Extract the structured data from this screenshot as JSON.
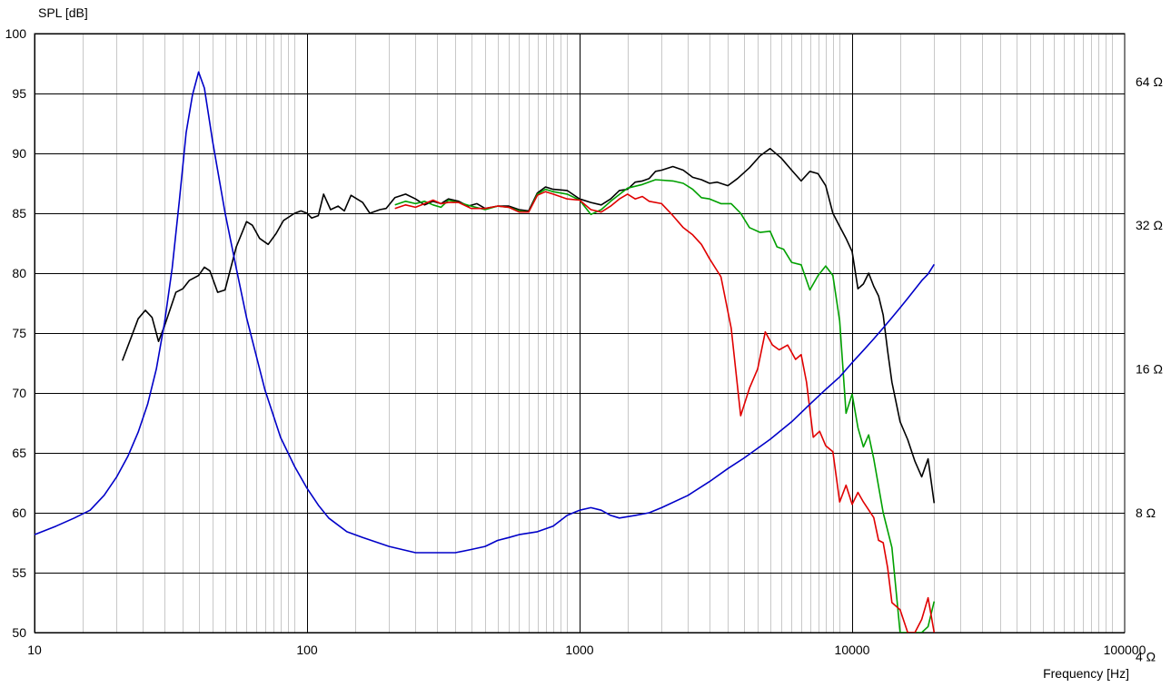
{
  "chart_data": {
    "type": "line",
    "ylabel": "SPL [dB]",
    "xlabel": "Frequency [Hz]",
    "x_scale": "log",
    "xlim": [
      10,
      100000
    ],
    "ylim": [
      50,
      100
    ],
    "x_ticks": [
      "10",
      "100",
      "1000",
      "10000",
      "100000"
    ],
    "y_ticks": [
      "50",
      "55",
      "60",
      "65",
      "70",
      "75",
      "80",
      "85",
      "90",
      "95",
      "100"
    ],
    "y2_scale": "log",
    "y2_ticks": [
      {
        "label": "4 Ω",
        "ohm": 4
      },
      {
        "label": "8 Ω",
        "ohm": 8
      },
      {
        "label": "16 Ω",
        "ohm": 16
      },
      {
        "label": "32 Ω",
        "ohm": 32
      },
      {
        "label": "64 Ω",
        "ohm": 64
      }
    ],
    "grid": true,
    "colors": {
      "grid_major": "#000000",
      "grid_minor": "#c8c8c8"
    },
    "series": [
      {
        "color": "#000000",
        "axis": "spl",
        "points": [
          [
            21,
            72.7
          ],
          [
            22.5,
            74.5
          ],
          [
            24,
            76.2
          ],
          [
            25.5,
            76.9
          ],
          [
            27,
            76.3
          ],
          [
            28.5,
            74.3
          ],
          [
            30,
            75.6
          ],
          [
            33,
            78.4
          ],
          [
            35,
            78.7
          ],
          [
            37,
            79.4
          ],
          [
            40,
            79.8
          ],
          [
            42,
            80.5
          ],
          [
            44,
            80.2
          ],
          [
            47,
            78.4
          ],
          [
            50,
            78.6
          ],
          [
            55,
            82.2
          ],
          [
            60,
            84.3
          ],
          [
            63,
            84.0
          ],
          [
            67,
            82.9
          ],
          [
            72,
            82.4
          ],
          [
            77,
            83.3
          ],
          [
            82,
            84.4
          ],
          [
            90,
            85.0
          ],
          [
            95,
            85.2
          ],
          [
            100,
            85.0
          ],
          [
            104,
            84.6
          ],
          [
            110,
            84.8
          ],
          [
            115,
            86.6
          ],
          [
            122,
            85.3
          ],
          [
            130,
            85.6
          ],
          [
            137,
            85.2
          ],
          [
            145,
            86.5
          ],
          [
            160,
            85.9
          ],
          [
            170,
            85.0
          ],
          [
            185,
            85.3
          ],
          [
            195,
            85.4
          ],
          [
            210,
            86.3
          ],
          [
            230,
            86.6
          ],
          [
            250,
            86.2
          ],
          [
            270,
            85.7
          ],
          [
            290,
            86.0
          ],
          [
            310,
            85.8
          ],
          [
            330,
            86.2
          ],
          [
            360,
            86.0
          ],
          [
            390,
            85.6
          ],
          [
            420,
            85.8
          ],
          [
            450,
            85.4
          ],
          [
            500,
            85.6
          ],
          [
            550,
            85.6
          ],
          [
            600,
            85.3
          ],
          [
            650,
            85.2
          ],
          [
            700,
            86.7
          ],
          [
            750,
            87.2
          ],
          [
            800,
            87.0
          ],
          [
            900,
            86.9
          ],
          [
            1000,
            86.2
          ],
          [
            1100,
            85.9
          ],
          [
            1200,
            85.7
          ],
          [
            1300,
            86.2
          ],
          [
            1400,
            86.9
          ],
          [
            1500,
            87.0
          ],
          [
            1600,
            87.6
          ],
          [
            1700,
            87.7
          ],
          [
            1800,
            87.9
          ],
          [
            1900,
            88.5
          ],
          [
            2000,
            88.6
          ],
          [
            2200,
            88.9
          ],
          [
            2400,
            88.6
          ],
          [
            2600,
            88.0
          ],
          [
            2800,
            87.8
          ],
          [
            3000,
            87.5
          ],
          [
            3200,
            87.6
          ],
          [
            3500,
            87.3
          ],
          [
            3800,
            87.9
          ],
          [
            4200,
            88.8
          ],
          [
            4600,
            89.8
          ],
          [
            5000,
            90.4
          ],
          [
            5500,
            89.6
          ],
          [
            6000,
            88.6
          ],
          [
            6500,
            87.7
          ],
          [
            7000,
            88.5
          ],
          [
            7500,
            88.3
          ],
          [
            8000,
            87.3
          ],
          [
            8500,
            85.0
          ],
          [
            9000,
            83.9
          ],
          [
            9500,
            82.9
          ],
          [
            10000,
            81.8
          ],
          [
            10500,
            78.7
          ],
          [
            11000,
            79.1
          ],
          [
            11500,
            80.0
          ],
          [
            12000,
            78.9
          ],
          [
            12500,
            78.1
          ],
          [
            13000,
            76.5
          ],
          [
            13500,
            73.5
          ],
          [
            14000,
            70.9
          ],
          [
            15000,
            67.6
          ],
          [
            16000,
            66.1
          ],
          [
            17000,
            64.3
          ],
          [
            18000,
            63.0
          ],
          [
            19000,
            64.5
          ],
          [
            20000,
            60.8
          ]
        ]
      },
      {
        "color": "#00a000",
        "axis": "spl",
        "points": [
          [
            210,
            85.7
          ],
          [
            230,
            86.0
          ],
          [
            250,
            85.8
          ],
          [
            270,
            86.0
          ],
          [
            290,
            85.7
          ],
          [
            310,
            85.5
          ],
          [
            330,
            86.1
          ],
          [
            360,
            85.9
          ],
          [
            400,
            85.6
          ],
          [
            450,
            85.3
          ],
          [
            500,
            85.6
          ],
          [
            550,
            85.5
          ],
          [
            600,
            85.2
          ],
          [
            650,
            85.1
          ],
          [
            700,
            86.6
          ],
          [
            750,
            87.0
          ],
          [
            800,
            86.8
          ],
          [
            900,
            86.6
          ],
          [
            1000,
            86.1
          ],
          [
            1100,
            84.9
          ],
          [
            1200,
            85.3
          ],
          [
            1300,
            86.0
          ],
          [
            1500,
            87.1
          ],
          [
            1700,
            87.4
          ],
          [
            1900,
            87.8
          ],
          [
            2200,
            87.7
          ],
          [
            2400,
            87.5
          ],
          [
            2600,
            87.0
          ],
          [
            2800,
            86.3
          ],
          [
            3000,
            86.2
          ],
          [
            3300,
            85.8
          ],
          [
            3600,
            85.8
          ],
          [
            3900,
            85.0
          ],
          [
            4200,
            83.8
          ],
          [
            4600,
            83.4
          ],
          [
            5000,
            83.5
          ],
          [
            5300,
            82.2
          ],
          [
            5600,
            82.0
          ],
          [
            6000,
            80.9
          ],
          [
            6500,
            80.7
          ],
          [
            7000,
            78.6
          ],
          [
            7500,
            79.8
          ],
          [
            8000,
            80.6
          ],
          [
            8500,
            79.8
          ],
          [
            9000,
            76.0
          ],
          [
            9500,
            68.3
          ],
          [
            10000,
            69.9
          ],
          [
            10500,
            67.1
          ],
          [
            11000,
            65.5
          ],
          [
            11500,
            66.5
          ],
          [
            12000,
            64.5
          ],
          [
            13000,
            60.0
          ],
          [
            14000,
            57.1
          ],
          [
            15000,
            50.0
          ],
          [
            16000,
            50.0
          ],
          [
            17000,
            50.0
          ],
          [
            18000,
            50.0
          ],
          [
            19000,
            50.5
          ],
          [
            20000,
            52.6
          ]
        ]
      },
      {
        "color": "#e00000",
        "axis": "spl",
        "points": [
          [
            210,
            85.4
          ],
          [
            230,
            85.7
          ],
          [
            250,
            85.5
          ],
          [
            270,
            85.8
          ],
          [
            290,
            86.1
          ],
          [
            310,
            85.8
          ],
          [
            330,
            85.9
          ],
          [
            360,
            85.9
          ],
          [
            400,
            85.4
          ],
          [
            450,
            85.4
          ],
          [
            500,
            85.6
          ],
          [
            550,
            85.5
          ],
          [
            600,
            85.1
          ],
          [
            650,
            85.1
          ],
          [
            700,
            86.5
          ],
          [
            750,
            86.8
          ],
          [
            800,
            86.6
          ],
          [
            900,
            86.2
          ],
          [
            1000,
            86.1
          ],
          [
            1100,
            85.3
          ],
          [
            1200,
            85.1
          ],
          [
            1300,
            85.6
          ],
          [
            1400,
            86.2
          ],
          [
            1500,
            86.6
          ],
          [
            1600,
            86.2
          ],
          [
            1700,
            86.4
          ],
          [
            1800,
            86.0
          ],
          [
            2000,
            85.8
          ],
          [
            2200,
            84.8
          ],
          [
            2400,
            83.8
          ],
          [
            2600,
            83.2
          ],
          [
            2800,
            82.4
          ],
          [
            3000,
            81.2
          ],
          [
            3300,
            79.7
          ],
          [
            3600,
            75.4
          ],
          [
            3900,
            68.1
          ],
          [
            4200,
            70.4
          ],
          [
            4500,
            72.0
          ],
          [
            4800,
            75.1
          ],
          [
            5100,
            74.0
          ],
          [
            5400,
            73.6
          ],
          [
            5800,
            74.0
          ],
          [
            6200,
            72.8
          ],
          [
            6500,
            73.2
          ],
          [
            6800,
            70.9
          ],
          [
            7200,
            66.3
          ],
          [
            7600,
            66.8
          ],
          [
            8000,
            65.6
          ],
          [
            8500,
            65.1
          ],
          [
            9000,
            60.9
          ],
          [
            9500,
            62.3
          ],
          [
            10000,
            60.7
          ],
          [
            10500,
            61.7
          ],
          [
            11000,
            60.9
          ],
          [
            12000,
            59.6
          ],
          [
            12500,
            57.7
          ],
          [
            13000,
            57.5
          ],
          [
            13500,
            55.4
          ],
          [
            14000,
            52.5
          ],
          [
            15000,
            51.9
          ],
          [
            16000,
            50.0
          ],
          [
            17000,
            50.0
          ],
          [
            18000,
            51.1
          ],
          [
            19000,
            52.9
          ],
          [
            20000,
            50.0
          ]
        ]
      },
      {
        "color": "#0000c8",
        "axis": "impedance",
        "points": [
          [
            10,
            7.2
          ],
          [
            12,
            7.5
          ],
          [
            14,
            7.8
          ],
          [
            16,
            8.1
          ],
          [
            18,
            8.7
          ],
          [
            20,
            9.5
          ],
          [
            22,
            10.5
          ],
          [
            24,
            11.8
          ],
          [
            26,
            13.5
          ],
          [
            28,
            16.0
          ],
          [
            30,
            20.0
          ],
          [
            32,
            26.0
          ],
          [
            34,
            36.0
          ],
          [
            36,
            50.0
          ],
          [
            38,
            60.0
          ],
          [
            40,
            67.0
          ],
          [
            42,
            62.0
          ],
          [
            45,
            48.0
          ],
          [
            50,
            34.0
          ],
          [
            55,
            26.0
          ],
          [
            60,
            20.5
          ],
          [
            70,
            14.5
          ],
          [
            80,
            11.5
          ],
          [
            90,
            10.0
          ],
          [
            100,
            9.0
          ],
          [
            110,
            8.3
          ],
          [
            120,
            7.8
          ],
          [
            140,
            7.3
          ],
          [
            160,
            7.1
          ],
          [
            200,
            6.8
          ],
          [
            250,
            6.6
          ],
          [
            300,
            6.6
          ],
          [
            350,
            6.6
          ],
          [
            400,
            6.7
          ],
          [
            450,
            6.8
          ],
          [
            500,
            7.0
          ],
          [
            550,
            7.1
          ],
          [
            600,
            7.2
          ],
          [
            700,
            7.3
          ],
          [
            800,
            7.5
          ],
          [
            900,
            7.9
          ],
          [
            1000,
            8.1
          ],
          [
            1100,
            8.2
          ],
          [
            1200,
            8.1
          ],
          [
            1300,
            7.9
          ],
          [
            1400,
            7.8
          ],
          [
            1600,
            7.9
          ],
          [
            1800,
            8.0
          ],
          [
            2000,
            8.2
          ],
          [
            2500,
            8.7
          ],
          [
            3000,
            9.3
          ],
          [
            3500,
            9.9
          ],
          [
            4000,
            10.4
          ],
          [
            5000,
            11.4
          ],
          [
            6000,
            12.4
          ],
          [
            7000,
            13.5
          ],
          [
            8000,
            14.5
          ],
          [
            9000,
            15.4
          ],
          [
            10000,
            16.5
          ],
          [
            11000,
            17.5
          ],
          [
            12000,
            18.5
          ],
          [
            13000,
            19.5
          ],
          [
            14000,
            20.5
          ],
          [
            15000,
            21.5
          ],
          [
            16000,
            22.5
          ],
          [
            17000,
            23.5
          ],
          [
            18000,
            24.5
          ],
          [
            19000,
            25.3
          ],
          [
            20000,
            26.5
          ]
        ]
      }
    ]
  }
}
